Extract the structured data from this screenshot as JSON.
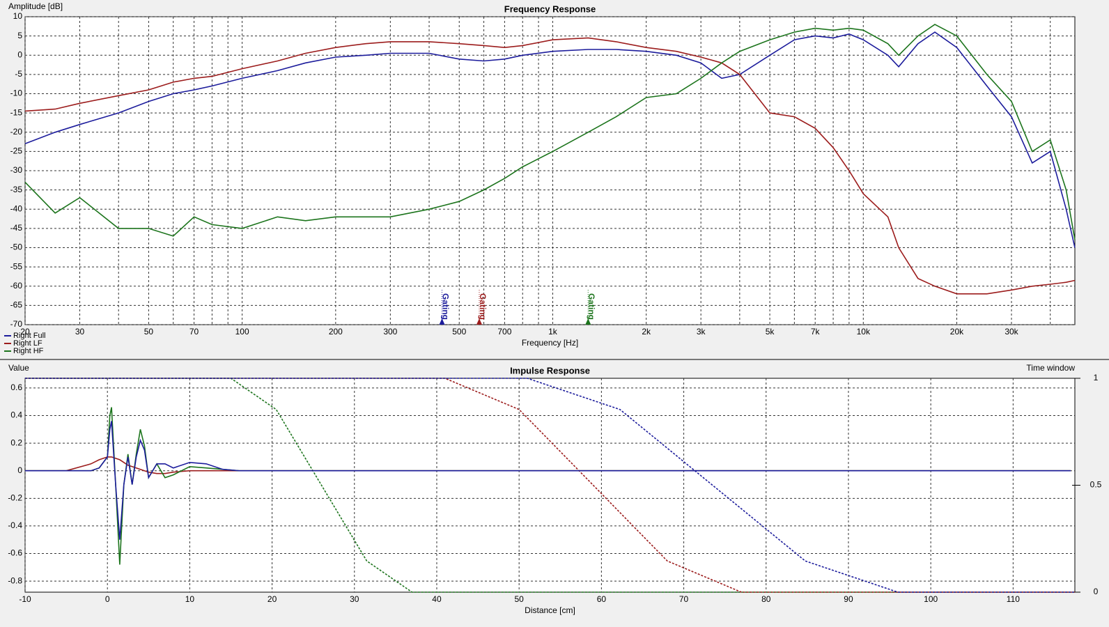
{
  "chart_data": [
    {
      "type": "line",
      "title": "Frequency Response",
      "ylabel": "Amplitude [dB]",
      "xlabel": "Frequency [Hz]",
      "xscale": "log",
      "xlim": [
        20,
        48000
      ],
      "ylim": [
        -70,
        10
      ],
      "xticks": [
        20,
        30,
        50,
        70,
        100,
        200,
        300,
        500,
        700,
        {
          "value": 1000,
          "label": "1k"
        },
        {
          "value": 2000,
          "label": "2k"
        },
        {
          "value": 3000,
          "label": "3k"
        },
        {
          "value": 5000,
          "label": "5k"
        },
        {
          "value": 7000,
          "label": "7k"
        },
        {
          "value": 10000,
          "label": "10k"
        },
        {
          "value": 20000,
          "label": "20k"
        },
        {
          "value": 30000,
          "label": "30k"
        }
      ],
      "xminor": [
        40,
        60,
        80,
        90,
        400,
        600,
        800,
        900,
        4000,
        6000,
        8000,
        9000,
        40000
      ],
      "yticks": [
        -70,
        -65,
        -60,
        -55,
        -50,
        -45,
        -40,
        -35,
        -30,
        -25,
        -20,
        -15,
        -10,
        -5,
        0,
        5,
        10
      ],
      "grid": true,
      "legend": "lower left",
      "x": [
        20,
        25,
        30,
        40,
        50,
        60,
        70,
        80,
        100,
        130,
        160,
        200,
        250,
        300,
        400,
        500,
        600,
        700,
        800,
        1000,
        1300,
        1600,
        2000,
        2500,
        3000,
        3500,
        4000,
        5000,
        6000,
        7000,
        8000,
        9000,
        10000,
        12000,
        13000,
        15000,
        17000,
        20000,
        25000,
        30000,
        35000,
        40000,
        45000,
        48000
      ],
      "series": [
        {
          "name": "Right Full",
          "color": "#1c1c9c",
          "values": [
            -23,
            -20,
            -18,
            -15,
            -12,
            -10,
            -9,
            -8,
            -6,
            -4,
            -2,
            -0.5,
            0,
            0.5,
            0.5,
            -1,
            -1.5,
            -1,
            0,
            1,
            1.5,
            1.5,
            1,
            0,
            -2,
            -6,
            -5,
            0,
            4,
            5,
            4.5,
            5.5,
            4,
            0,
            -3,
            3,
            6,
            2,
            -8,
            -16,
            -28,
            -25,
            -40,
            -50
          ]
        },
        {
          "name": "Right LF",
          "color": "#9c1c1c",
          "values": [
            -14.5,
            -14,
            -12.5,
            -10.5,
            -9,
            -7,
            -6,
            -5.5,
            -3.5,
            -1.5,
            0.5,
            2,
            3,
            3.5,
            3.5,
            3,
            2.5,
            2,
            2.5,
            4,
            4.5,
            3.5,
            2,
            1,
            -0.5,
            -2,
            -5,
            -15,
            -16,
            -19,
            -24,
            -30,
            -36,
            -42,
            -50,
            -58,
            -60,
            -62,
            -62,
            -61,
            -60,
            -59.5,
            -59,
            -58.5
          ]
        },
        {
          "name": "Right HF",
          "color": "#1c741c",
          "values": [
            -33,
            -41,
            -37,
            -45,
            -45,
            -47,
            -42,
            -44,
            -45,
            -42,
            -43,
            -42,
            -42,
            -42,
            -40,
            -38,
            -35,
            -32,
            -29,
            -25,
            -20,
            -16,
            -11,
            -10,
            -6,
            -2,
            1,
            4,
            6,
            7,
            6.5,
            7,
            6.5,
            3,
            0,
            5,
            8,
            5,
            -5,
            -12,
            -25,
            -22,
            -35,
            -48
          ]
        }
      ],
      "markers": [
        {
          "label": "Gating",
          "x": 440,
          "color": "#1c1c9c"
        },
        {
          "label": "Gating",
          "x": 580,
          "color": "#9c1c1c"
        },
        {
          "label": "Gating",
          "x": 1300,
          "color": "#1c741c"
        }
      ]
    },
    {
      "type": "line",
      "title": "Impulse Response",
      "ylabel": "Value",
      "y2label": "Time window",
      "xlabel": "Distance [cm]",
      "xlim": [
        -10,
        117.5
      ],
      "ylim": [
        -0.88,
        0.67
      ],
      "y2lim": [
        0,
        1
      ],
      "xticks": [
        -10,
        0,
        10,
        20,
        30,
        40,
        50,
        60,
        70,
        80,
        90,
        100,
        110
      ],
      "yticks": [
        -0.8,
        -0.6,
        -0.4,
        -0.2,
        0,
        0.2,
        0.4,
        0.6
      ],
      "y2ticks": [
        0,
        0.5,
        1
      ],
      "grid": true,
      "x": [
        -10,
        -5,
        -2,
        -1,
        0,
        0.3,
        0.5,
        1,
        1.5,
        2,
        2.5,
        3,
        3.5,
        4,
        4.5,
        5,
        6,
        7,
        8,
        10,
        12,
        14,
        16,
        20,
        30,
        40,
        60,
        80,
        100,
        117
      ],
      "series": [
        {
          "color": "#9c1c1c",
          "values": [
            0,
            0,
            0.05,
            0.08,
            0.1,
            0.1,
            0.1,
            0.09,
            0.08,
            0.06,
            0.04,
            0.03,
            0.02,
            0.01,
            0,
            -0.01,
            -0.02,
            -0.02,
            -0.01,
            0,
            0,
            0,
            0,
            0,
            0,
            0,
            0,
            0,
            0,
            0
          ]
        },
        {
          "color": "#1c741c",
          "values": [
            0,
            0,
            0,
            0.02,
            0.1,
            0.4,
            0.46,
            -0.1,
            -0.68,
            -0.1,
            0.12,
            -0.1,
            0.12,
            0.3,
            0.18,
            -0.05,
            0.05,
            -0.05,
            -0.03,
            0.03,
            0.02,
            0.01,
            0,
            0,
            0,
            0,
            0,
            0,
            0,
            0
          ]
        },
        {
          "color": "#1c1c9c",
          "values": [
            0,
            0,
            0,
            0.02,
            0.1,
            0.3,
            0.36,
            -0.1,
            -0.5,
            -0.1,
            0.1,
            -0.1,
            0.1,
            0.22,
            0.15,
            -0.05,
            0.05,
            0.05,
            0.02,
            0.06,
            0.05,
            0.01,
            0,
            0,
            0,
            0,
            0,
            0,
            0,
            0
          ]
        }
      ],
      "windows": [
        {
          "color": "#1c741c",
          "axis": "y2",
          "x": [
            -10,
            15,
            20.5,
            26,
            31.5,
            37,
            117.5
          ],
          "values": [
            1,
            1,
            0.854,
            0.5,
            0.146,
            0,
            0
          ]
        },
        {
          "color": "#9c1c1c",
          "axis": "y2",
          "x": [
            -10,
            41,
            50,
            59,
            68,
            77,
            117.5
          ],
          "values": [
            1,
            1,
            0.854,
            0.5,
            0.146,
            0,
            0
          ]
        },
        {
          "color": "#1c1c9c",
          "axis": "y2",
          "x": [
            -10,
            51,
            62.25,
            73.5,
            84.75,
            96,
            117.5
          ],
          "values": [
            1,
            1,
            0.854,
            0.5,
            0.146,
            0,
            0
          ]
        }
      ]
    }
  ]
}
